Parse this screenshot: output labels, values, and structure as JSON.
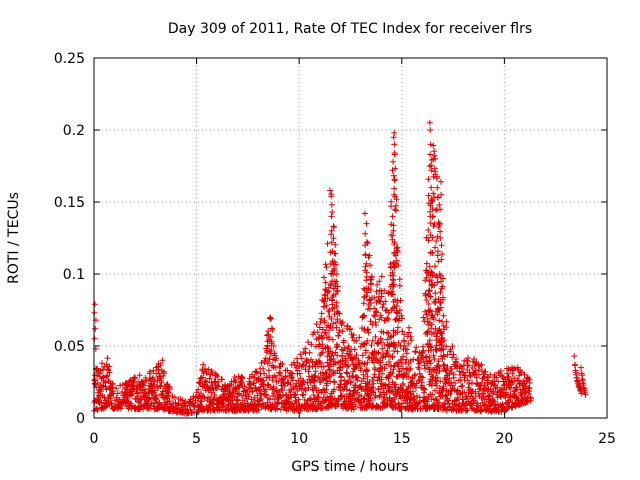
{
  "chart_data": {
    "type": "scatter",
    "title": "Day 309 of 2011, Rate Of TEC Index for receiver flrs",
    "xlabel": "GPS time / hours",
    "ylabel": "ROTI / TECUs",
    "xlim": [
      0,
      25
    ],
    "ylim": [
      0,
      0.25
    ],
    "x_ticks": [
      0,
      5,
      10,
      15,
      20,
      25
    ],
    "x_tick_labels": [
      "0",
      "5",
      "10",
      "15",
      "20",
      "25"
    ],
    "y_ticks": [
      0,
      0.05,
      0.1,
      0.15,
      0.2,
      0.25
    ],
    "y_tick_labels": [
      "0",
      "0.05",
      "0.1",
      "0.15",
      "0.2",
      "0.25"
    ],
    "grid": true,
    "marker": "+",
    "color": "#e00000",
    "envelope": {
      "x": [
        0,
        0.3,
        0.6,
        1,
        1.5,
        2,
        2.5,
        3,
        3.3,
        3.6,
        4,
        4.5,
        5,
        5.3,
        5.7,
        6,
        6.5,
        7,
        7.5,
        8,
        8.3,
        8.6,
        9,
        9.5,
        10,
        10.5,
        11,
        11.3,
        11.6,
        12,
        12.5,
        13,
        13.3,
        13.6,
        14,
        14.3,
        14.6,
        15,
        15.5,
        16,
        16.4,
        16.8,
        17.2,
        17.6,
        18,
        18.5,
        19,
        19.5,
        20,
        20.5,
        21,
        21.3
      ],
      "upper": [
        0.04,
        0.035,
        0.045,
        0.02,
        0.025,
        0.03,
        0.03,
        0.035,
        0.042,
        0.025,
        0.015,
        0.012,
        0.018,
        0.04,
        0.035,
        0.03,
        0.025,
        0.03,
        0.028,
        0.035,
        0.05,
        0.072,
        0.04,
        0.035,
        0.045,
        0.055,
        0.07,
        0.11,
        0.16,
        0.07,
        0.065,
        0.055,
        0.14,
        0.09,
        0.1,
        0.08,
        0.2,
        0.07,
        0.06,
        0.05,
        0.205,
        0.165,
        0.06,
        0.045,
        0.04,
        0.045,
        0.035,
        0.03,
        0.035,
        0.04,
        0.032,
        0.028
      ],
      "lower": [
        0.005,
        0.005,
        0.008,
        0.006,
        0.007,
        0.006,
        0.006,
        0.006,
        0.006,
        0.005,
        0.004,
        0.003,
        0.004,
        0.005,
        0.005,
        0.005,
        0.005,
        0.005,
        0.005,
        0.005,
        0.006,
        0.006,
        0.006,
        0.005,
        0.005,
        0.006,
        0.006,
        0.007,
        0.008,
        0.007,
        0.006,
        0.006,
        0.007,
        0.007,
        0.007,
        0.007,
        0.007,
        0.006,
        0.006,
        0.006,
        0.006,
        0.006,
        0.005,
        0.005,
        0.005,
        0.005,
        0.004,
        0.004,
        0.004,
        0.008,
        0.01,
        0.012
      ]
    },
    "late_cluster": {
      "x_range": [
        23.4,
        23.9
      ],
      "values": [
        0.043,
        0.037,
        0.033,
        0.03,
        0.028,
        0.026,
        0.025,
        0.023,
        0.022,
        0.02,
        0.035,
        0.031,
        0.027,
        0.024,
        0.021,
        0.019
      ]
    },
    "spikes": [
      {
        "x": 0.05,
        "values": [
          0.079,
          0.073,
          0.068,
          0.062,
          0.055,
          0.048
        ]
      },
      {
        "x": 11.55,
        "values": [
          0.158,
          0.154,
          0.148,
          0.14,
          0.13,
          0.122,
          0.115,
          0.107,
          0.1,
          0.093
        ]
      },
      {
        "x": 13.25,
        "values": [
          0.142,
          0.135,
          0.128,
          0.12,
          0.113,
          0.105,
          0.098,
          0.09
        ]
      },
      {
        "x": 14.6,
        "values": [
          0.198,
          0.195,
          0.19,
          0.184,
          0.178,
          0.172,
          0.165,
          0.155,
          0.14,
          0.13,
          0.122,
          0.115,
          0.107
        ]
      },
      {
        "x": 16.4,
        "values": [
          0.205,
          0.2,
          0.19,
          0.183,
          0.172,
          0.16,
          0.152,
          0.14,
          0.127,
          0.115,
          0.105,
          0.095,
          0.088
        ]
      },
      {
        "x": 16.9,
        "values": [
          0.164,
          0.155,
          0.145,
          0.135,
          0.125,
          0.12,
          0.11,
          0.1,
          0.09,
          0.08
        ]
      }
    ]
  }
}
